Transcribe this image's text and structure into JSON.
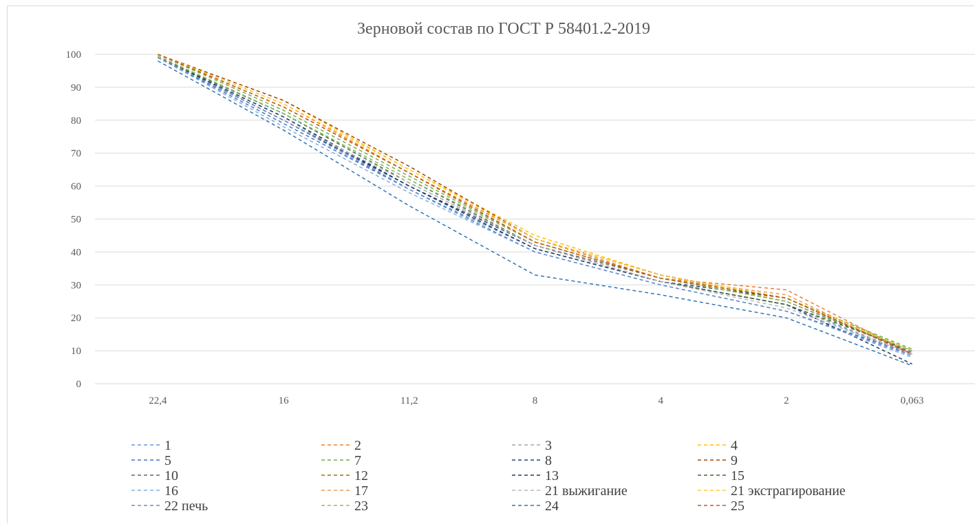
{
  "chart_data": {
    "type": "line",
    "title": "Зерновой состав по ГОСТ Р 58401.2-2019",
    "xlabel": "",
    "ylabel": "",
    "categories": [
      "22,4",
      "16",
      "11,2",
      "8",
      "4",
      "2",
      "0,063"
    ],
    "ylim": [
      0,
      100
    ],
    "yticks": [
      0,
      10,
      20,
      30,
      40,
      50,
      60,
      70,
      80,
      90,
      100
    ],
    "grid": true,
    "line_style": "dashed",
    "legend_position": "bottom",
    "series": [
      {
        "name": "1",
        "color": "#5b9bd5",
        "values": [
          99,
          81,
          59,
          41,
          31,
          24,
          8.5
        ]
      },
      {
        "name": "2",
        "color": "#ed7d31",
        "values": [
          100,
          85,
          64,
          44,
          32,
          28.5,
          9
        ]
      },
      {
        "name": "3",
        "color": "#a5a5a5",
        "values": [
          99.5,
          80,
          60,
          41,
          31,
          24,
          9
        ]
      },
      {
        "name": "4",
        "color": "#ffc000",
        "values": [
          100,
          86,
          65,
          45,
          33,
          25,
          10
        ]
      },
      {
        "name": "5",
        "color": "#4472c4",
        "values": [
          99,
          79,
          59,
          40,
          30,
          22,
          9
        ]
      },
      {
        "name": "7",
        "color": "#70ad47",
        "values": [
          100,
          83,
          63,
          43,
          32,
          26,
          10.5
        ]
      },
      {
        "name": "8",
        "color": "#264478",
        "values": [
          99,
          80,
          60,
          42,
          31,
          26,
          9
        ]
      },
      {
        "name": "9",
        "color": "#9e480e",
        "values": [
          100,
          86,
          66,
          44,
          33,
          26,
          9
        ]
      },
      {
        "name": "10",
        "color": "#636363",
        "values": [
          99.5,
          82,
          62,
          42,
          32,
          25,
          9.5
        ]
      },
      {
        "name": "12",
        "color": "#997300",
        "values": [
          100,
          84,
          64,
          43,
          32,
          26,
          10
        ]
      },
      {
        "name": "13",
        "color": "#1f3864",
        "values": [
          99,
          81,
          60,
          41,
          31,
          24,
          6
        ]
      },
      {
        "name": "15",
        "color": "#43682b",
        "values": [
          99,
          82,
          61,
          42,
          31,
          24,
          10
        ]
      },
      {
        "name": "16",
        "color": "#7cafdd",
        "values": [
          99,
          78,
          58,
          40,
          30,
          22,
          8
        ]
      },
      {
        "name": "17",
        "color": "#f1975a",
        "values": [
          100,
          84,
          64,
          43,
          32,
          27,
          9
        ]
      },
      {
        "name": "21 выжигание",
        "color": "#b7b7b7",
        "values": [
          99,
          80,
          61,
          42,
          31,
          23,
          9
        ]
      },
      {
        "name": "21 экстрагирование",
        "color": "#ffcd33",
        "values": [
          100,
          85,
          65,
          44,
          33,
          26,
          10
        ]
      },
      {
        "name": "22 печь",
        "color": "#698ed0",
        "values": [
          99,
          80,
          59,
          40,
          30,
          22,
          8.5
        ]
      },
      {
        "name": "23",
        "color": "#8cc168",
        "values": [
          99.5,
          82,
          62,
          43,
          32,
          25,
          10
        ]
      },
      {
        "name": "24",
        "color": "#2e75b6",
        "values": [
          98,
          77,
          54,
          33,
          27,
          20,
          5.5
        ]
      },
      {
        "name": "25",
        "color": "#c55a11",
        "values": [
          100,
          84,
          64,
          43,
          32,
          26,
          9
        ]
      }
    ]
  }
}
